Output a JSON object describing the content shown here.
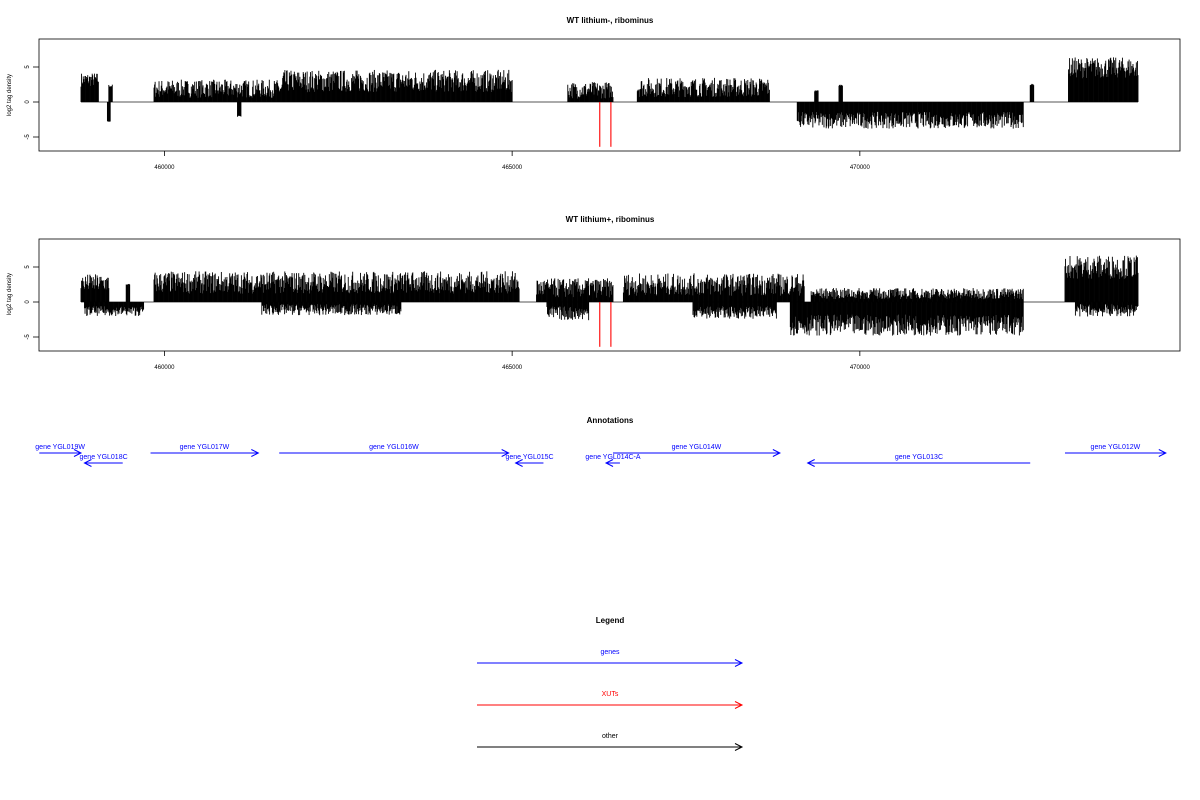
{
  "chart_data": [
    {
      "type": "bar",
      "title": "WT lithium-, ribominus",
      "ylabel": "log2 tag density",
      "xlim": [
        458200,
        474400
      ],
      "ylim": [
        -7,
        9
      ],
      "x_ticks": [
        460000,
        465000,
        470000
      ],
      "y_ticks": [
        -5,
        0,
        5
      ],
      "baseline": 0,
      "series": [
        {
          "strand": "plus",
          "color": "#000000",
          "segments": [
            {
              "x0": 458800,
              "x1": 459050,
              "mean": 3.2,
              "jitter": 1.0
            },
            {
              "x0": 459200,
              "x1": 459250,
              "mean": 2.3,
              "jitter": 0.2
            },
            {
              "x0": 459850,
              "x1": 461700,
              "mean": 1.9,
              "jitter": 1.3
            },
            {
              "x0": 461700,
              "x1": 465000,
              "mean": 3.0,
              "jitter": 1.6
            },
            {
              "x0": 465800,
              "x1": 466450,
              "mean": 1.7,
              "jitter": 1.2
            },
            {
              "x0": 466800,
              "x1": 468700,
              "mean": 2.1,
              "jitter": 1.4
            },
            {
              "x0": 469350,
              "x1": 469400,
              "mean": 1.6,
              "jitter": 0.1
            },
            {
              "x0": 469700,
              "x1": 469750,
              "mean": 2.4,
              "jitter": 0.1
            },
            {
              "x0": 472450,
              "x1": 472500,
              "mean": 2.5,
              "jitter": 0.1
            },
            {
              "x0": 473000,
              "x1": 474000,
              "mean": 4.9,
              "jitter": 1.5
            }
          ]
        },
        {
          "strand": "minus",
          "color": "#000000",
          "segments": [
            {
              "x0": 459180,
              "x1": 459220,
              "mean": -2.8,
              "jitter": 0.1
            },
            {
              "x0": 461050,
              "x1": 461100,
              "mean": -2.0,
              "jitter": 0.1
            },
            {
              "x0": 469100,
              "x1": 472350,
              "mean": -2.6,
              "jitter": 1.2
            }
          ]
        },
        {
          "strand": "XUT",
          "color": "#ff0000",
          "bars": [
            {
              "x": 466260,
              "value": -6.4
            },
            {
              "x": 466420,
              "value": -6.4
            }
          ]
        }
      ]
    },
    {
      "type": "bar",
      "title": "WT lithium+, ribominus",
      "ylabel": "log2 tag density",
      "xlim": [
        458200,
        474400
      ],
      "ylim": [
        -7,
        9
      ],
      "x_ticks": [
        460000,
        465000,
        470000
      ],
      "y_ticks": [
        -5,
        0,
        5
      ],
      "baseline": 0,
      "series": [
        {
          "strand": "plus",
          "color": "#000000",
          "segments": [
            {
              "x0": 458800,
              "x1": 459200,
              "mean": 2.7,
              "jitter": 1.3
            },
            {
              "x0": 459450,
              "x1": 459500,
              "mean": 2.5,
              "jitter": 0.1
            },
            {
              "x0": 459850,
              "x1": 465100,
              "mean": 2.8,
              "jitter": 1.6
            },
            {
              "x0": 465350,
              "x1": 466450,
              "mean": 2.0,
              "jitter": 1.4
            },
            {
              "x0": 466600,
              "x1": 469200,
              "mean": 2.5,
              "jitter": 1.6
            },
            {
              "x0": 469300,
              "x1": 472350,
              "mean": 1.2,
              "jitter": 0.8
            },
            {
              "x0": 472950,
              "x1": 474000,
              "mean": 5.0,
              "jitter": 1.7
            }
          ]
        },
        {
          "strand": "minus",
          "color": "#000000",
          "segments": [
            {
              "x0": 458850,
              "x1": 459700,
              "mean": -1.3,
              "jitter": 0.7
            },
            {
              "x0": 461400,
              "x1": 463400,
              "mean": -1.1,
              "jitter": 0.8
            },
            {
              "x0": 465500,
              "x1": 466100,
              "mean": -1.6,
              "jitter": 1.0
            },
            {
              "x0": 467600,
              "x1": 468800,
              "mean": -1.5,
              "jitter": 0.9
            },
            {
              "x0": 469000,
              "x1": 472350,
              "mean": -3.3,
              "jitter": 1.5
            },
            {
              "x0": 473100,
              "x1": 474000,
              "mean": -1.2,
              "jitter": 0.9
            }
          ]
        },
        {
          "strand": "XUT",
          "color": "#ff0000",
          "bars": [
            {
              "x": 466260,
              "value": -6.4
            },
            {
              "x": 466420,
              "value": -6.4
            }
          ]
        }
      ]
    }
  ],
  "annotations": {
    "title": "Annotations",
    "color": "#0000ff",
    "genes": [
      {
        "label": "gene YGL019W",
        "x0": 458200,
        "x1": 458800,
        "strand": "+",
        "row": 0
      },
      {
        "label": "gene YGL018C",
        "x0": 458850,
        "x1": 459400,
        "strand": "-",
        "row": 1
      },
      {
        "label": "gene YGL017W",
        "x0": 459800,
        "x1": 461350,
        "strand": "+",
        "row": 0
      },
      {
        "label": "gene YGL016W",
        "x0": 461650,
        "x1": 464950,
        "strand": "+",
        "row": 0
      },
      {
        "label": "gene YGL015C",
        "x0": 465050,
        "x1": 465450,
        "strand": "-",
        "row": 1
      },
      {
        "label": "gene YGL014C-A",
        "x0": 466350,
        "x1": 466550,
        "strand": "-",
        "row": 1
      },
      {
        "label": "gene YGL014W",
        "x0": 466450,
        "x1": 468850,
        "strand": "+",
        "row": 0
      },
      {
        "label": "gene YGL013C",
        "x0": 469250,
        "x1": 472450,
        "strand": "-",
        "row": 1
      },
      {
        "label": "gene YGL012W",
        "x0": 472950,
        "x1": 474400,
        "strand": "+",
        "row": 0
      }
    ]
  },
  "legend": {
    "title": "Legend",
    "items": [
      {
        "label": "genes",
        "color": "#0000ff"
      },
      {
        "label": "XUTs",
        "color": "#ff0000"
      },
      {
        "label": "other",
        "color": "#000000"
      }
    ]
  }
}
